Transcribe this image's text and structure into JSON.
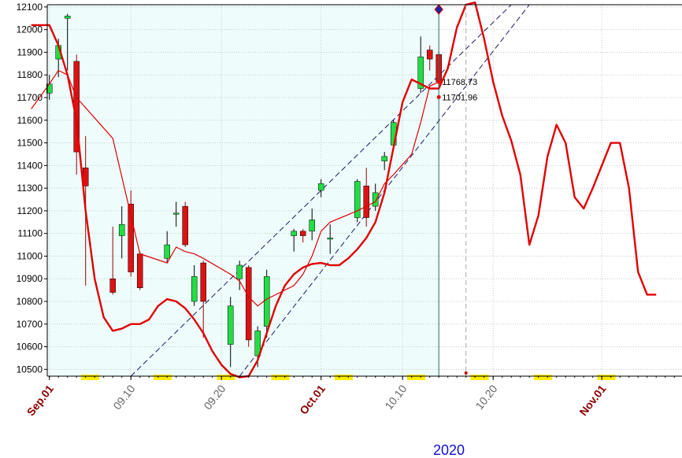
{
  "chart_data": {
    "type": "candlestick",
    "year_label": "2020",
    "ylim": [
      10470,
      12110
    ],
    "y_ticks": [
      10500,
      10600,
      10700,
      10800,
      10900,
      11000,
      11100,
      11200,
      11300,
      11400,
      11500,
      11600,
      11700,
      11800,
      11900,
      12000,
      12100
    ],
    "x_ticks": [
      {
        "day": 1,
        "label": "Sep.01",
        "month_start": true
      },
      {
        "day": 10,
        "label": "09.10",
        "month_start": false
      },
      {
        "day": 20,
        "label": "09.20",
        "month_start": false
      },
      {
        "day": 31,
        "label": "Oct.01",
        "month_start": true
      },
      {
        "day": 40,
        "label": "10.10",
        "month_start": false
      },
      {
        "day": 50,
        "label": "10.20",
        "month_start": false
      },
      {
        "day": 62,
        "label": "Nov.01",
        "month_start": true
      }
    ],
    "candles": [
      {
        "day": 1,
        "open": 11720,
        "high": 11800,
        "low": 11690,
        "close": 11760
      },
      {
        "day": 2,
        "open": 11870,
        "high": 11960,
        "low": 11790,
        "close": 11930
      },
      {
        "day": 3,
        "open": 12050,
        "high": 12070,
        "low": 11820,
        "close": 12060
      },
      {
        "day": 4,
        "open": 11860,
        "high": 11890,
        "low": 11360,
        "close": 11460
      },
      {
        "day": 5,
        "open": 11390,
        "high": 11530,
        "low": 10870,
        "close": 11310
      },
      {
        "day": 8,
        "open": 10900,
        "high": 11130,
        "low": 10830,
        "close": 10840
      },
      {
        "day": 9,
        "open": 11090,
        "high": 11220,
        "low": 10990,
        "close": 11140
      },
      {
        "day": 10,
        "open": 11230,
        "high": 11290,
        "low": 10910,
        "close": 10930
      },
      {
        "day": 11,
        "open": 11010,
        "high": 11020,
        "low": 10850,
        "close": 10860
      },
      {
        "day": 14,
        "open": 10990,
        "high": 11110,
        "low": 10970,
        "close": 11050
      },
      {
        "day": 15,
        "open": 11190,
        "high": 11240,
        "low": 11130,
        "close": 11190
      },
      {
        "day": 16,
        "open": 11220,
        "high": 11240,
        "low": 11040,
        "close": 11050
      },
      {
        "day": 17,
        "open": 10800,
        "high": 10960,
        "low": 10780,
        "close": 10910
      },
      {
        "day": 18,
        "open": 10970,
        "high": 10980,
        "low": 10640,
        "close": 10800
      },
      {
        "day": 21,
        "open": 10610,
        "high": 10820,
        "low": 10510,
        "close": 10780
      },
      {
        "day": 22,
        "open": 10900,
        "high": 10980,
        "low": 10850,
        "close": 10960
      },
      {
        "day": 23,
        "open": 10950,
        "high": 10960,
        "low": 10600,
        "close": 10630
      },
      {
        "day": 24,
        "open": 10560,
        "high": 10690,
        "low": 10510,
        "close": 10670
      },
      {
        "day": 25,
        "open": 10690,
        "high": 10940,
        "low": 10640,
        "close": 10910
      },
      {
        "day": 28,
        "open": 11090,
        "high": 11120,
        "low": 11020,
        "close": 11110
      },
      {
        "day": 29,
        "open": 11110,
        "high": 11120,
        "low": 11060,
        "close": 11090
      },
      {
        "day": 30,
        "open": 11110,
        "high": 11210,
        "low": 11070,
        "close": 11160
      },
      {
        "day": 31,
        "open": 11290,
        "high": 11340,
        "low": 11260,
        "close": 11320
      },
      {
        "day": 32,
        "open": 11080,
        "high": 11140,
        "low": 11010,
        "close": 11080
      },
      {
        "day": 35,
        "open": 11170,
        "high": 11340,
        "low": 11150,
        "close": 11330
      },
      {
        "day": 36,
        "open": 11310,
        "high": 11390,
        "low": 11130,
        "close": 11170
      },
      {
        "day": 37,
        "open": 11220,
        "high": 11320,
        "low": 11200,
        "close": 11280
      },
      {
        "day": 38,
        "open": 11420,
        "high": 11460,
        "low": 11380,
        "close": 11440
      },
      {
        "day": 39,
        "open": 11490,
        "high": 11600,
        "low": 11480,
        "close": 11590
      },
      {
        "day": 42,
        "open": 11740,
        "high": 11970,
        "low": 11720,
        "close": 11880
      },
      {
        "day": 43,
        "open": 11910,
        "high": 11930,
        "low": 11820,
        "close": 11870
      },
      {
        "day": 44,
        "open": 11890,
        "high": 11900,
        "low": 11750,
        "close": 11770
      }
    ],
    "smooth_line": {
      "name": "",
      "color": "#e00000",
      "points": [
        [
          -1,
          12020
        ],
        [
          1,
          12020
        ],
        [
          2,
          11930
        ],
        [
          3,
          11800
        ],
        [
          4,
          11600
        ],
        [
          5,
          11200
        ],
        [
          6,
          10900
        ],
        [
          7,
          10730
        ],
        [
          8,
          10670
        ],
        [
          9,
          10680
        ],
        [
          10,
          10700
        ],
        [
          11,
          10700
        ],
        [
          12,
          10720
        ],
        [
          13,
          10780
        ],
        [
          14,
          10810
        ],
        [
          15,
          10800
        ],
        [
          16,
          10770
        ],
        [
          17,
          10720
        ],
        [
          18,
          10660
        ],
        [
          19,
          10580
        ],
        [
          20,
          10520
        ],
        [
          21,
          10480
        ],
        [
          22,
          10465
        ],
        [
          23,
          10470
        ],
        [
          24,
          10540
        ],
        [
          25,
          10660
        ],
        [
          26,
          10780
        ],
        [
          27,
          10870
        ],
        [
          28,
          10920
        ],
        [
          29,
          10950
        ],
        [
          30,
          10965
        ],
        [
          31,
          10970
        ],
        [
          32,
          10960
        ],
        [
          33,
          10960
        ],
        [
          34,
          10990
        ],
        [
          35,
          11030
        ],
        [
          36,
          11080
        ],
        [
          37,
          11150
        ],
        [
          38,
          11280
        ],
        [
          39,
          11480
        ],
        [
          40,
          11680
        ],
        [
          41,
          11780
        ],
        [
          42,
          11760
        ],
        [
          43,
          11740
        ],
        [
          44,
          11740
        ],
        [
          45,
          11830
        ],
        [
          46,
          12010
        ],
        [
          47,
          12110
        ],
        [
          48,
          12120
        ],
        [
          49,
          11960
        ],
        [
          50,
          11770
        ],
        [
          51,
          11620
        ],
        [
          52,
          11510
        ],
        [
          53,
          11360
        ],
        [
          54,
          11050
        ],
        [
          55,
          11180
        ],
        [
          56,
          11440
        ],
        [
          57,
          11580
        ],
        [
          58,
          11500
        ],
        [
          59,
          11260
        ],
        [
          60,
          11210
        ],
        [
          61,
          11300
        ],
        [
          62,
          11400
        ],
        [
          63,
          11500
        ],
        [
          64,
          11500
        ],
        [
          65,
          11300
        ],
        [
          66,
          10930
        ],
        [
          67,
          10830
        ],
        [
          68,
          10830
        ]
      ]
    },
    "thin_line": {
      "name": "",
      "color": "#e00000",
      "points": [
        [
          -1,
          11650
        ],
        [
          1,
          11760
        ],
        [
          2,
          11820
        ],
        [
          3,
          11800
        ],
        [
          4,
          11700
        ],
        [
          8,
          11520
        ],
        [
          11,
          11010
        ],
        [
          14,
          10970
        ],
        [
          15,
          11040
        ],
        [
          16,
          11020
        ],
        [
          17,
          11010
        ],
        [
          18,
          10990
        ],
        [
          21,
          10920
        ],
        [
          22,
          10890
        ],
        [
          23,
          10820
        ],
        [
          24,
          10780
        ],
        [
          25,
          10810
        ],
        [
          28,
          10870
        ],
        [
          29,
          10920
        ],
        [
          30,
          11000
        ],
        [
          31,
          11110
        ],
        [
          32,
          11150
        ],
        [
          35,
          11200
        ],
        [
          36,
          11220
        ],
        [
          37,
          11240
        ],
        [
          38,
          11320
        ],
        [
          39,
          11360
        ],
        [
          41,
          11450
        ],
        [
          42,
          11590
        ],
        [
          43,
          11750
        ],
        [
          44,
          11770
        ]
      ]
    },
    "channel_upper": {
      "color": "#1a1a66",
      "from": [
        10,
        10470
      ],
      "to": [
        52,
        12110
      ]
    },
    "channel_lower": {
      "color": "#1a1a66",
      "from": [
        22,
        10470
      ],
      "to": [
        54,
        12110
      ]
    },
    "current_day": 44,
    "forecast_day": 47,
    "price_labels": [
      "11768.73",
      "11701.96"
    ],
    "price_label_values": [
      11768.73,
      11701.96
    ],
    "highlight_bands": [
      5,
      6,
      13,
      14,
      20,
      21,
      26,
      27,
      33,
      34,
      41,
      42,
      48,
      49,
      55,
      56,
      62,
      63
    ],
    "colors": {
      "up": "#22dd44",
      "down": "#dd1111",
      "history_bg": "#eefcfc",
      "month_label": "#8b0000",
      "tick_label": "#666666",
      "year_label": "#1010d0",
      "band": "#ffee00"
    }
  }
}
